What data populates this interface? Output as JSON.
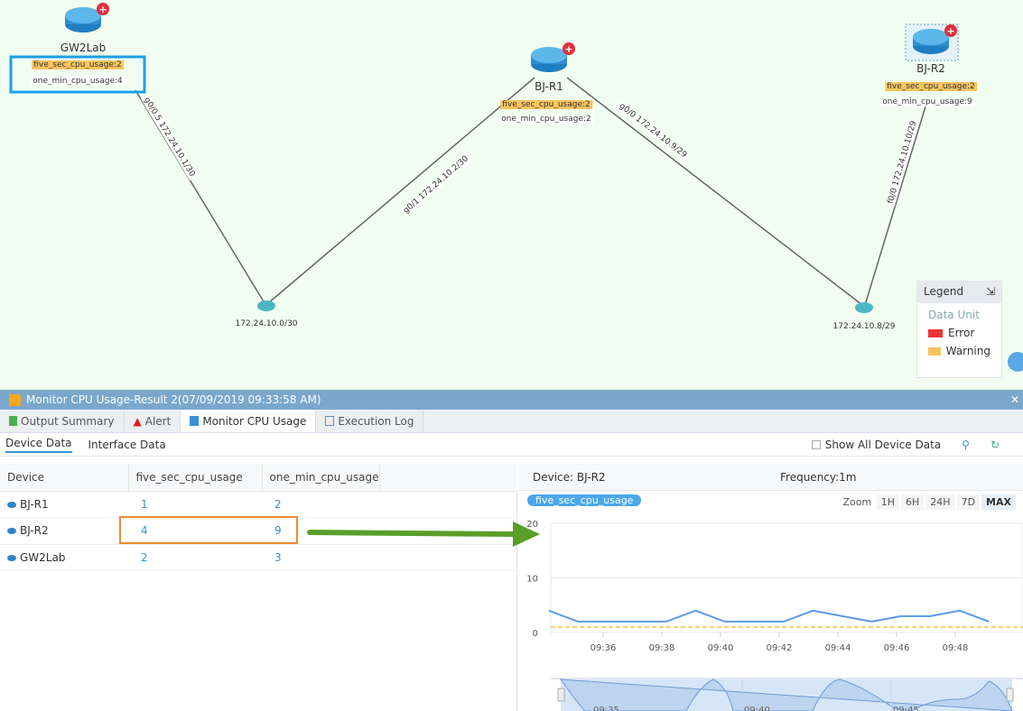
{
  "map": {
    "nodes": [
      {
        "name": "GW2Lab",
        "five": "five_sec_cpu_usage:2",
        "one": "one_min_cpu_usage:4"
      },
      {
        "name": "BJ-R1",
        "five": "five_sec_cpu_usage:2",
        "one": "one_min_cpu_usage:2"
      },
      {
        "name": "BJ-R2",
        "five": "five_sec_cpu_usage:2",
        "one": "one_min_cpu_usage:9"
      }
    ],
    "subnets": [
      "172.24.10.0/30",
      "172.24.10.8/29"
    ],
    "links": [
      "g0/0.5 172.24.10.1/30",
      "g0/1 172.24.10.2/30",
      "g0/0 172.24.10.9/29",
      "f0/0 172.24.10.10/29"
    ],
    "legend": {
      "title": "Legend",
      "section": "Data Unit",
      "items": [
        {
          "label": "Error",
          "color": "#ee3333"
        },
        {
          "label": "Warning",
          "color": "#f9c45f"
        }
      ]
    }
  },
  "panel": {
    "title": "Monitor CPU Usage-Result 2(07/09/2019 09:33:58 AM)",
    "tabs": [
      "Output Summary",
      "Alert",
      "Monitor CPU Usage",
      "Execution Log"
    ],
    "subtabs": [
      "Device Data",
      "Interface Data"
    ],
    "show_all": "Show All Device Data",
    "table": {
      "headers": [
        "Device",
        "five_sec_cpu_usage",
        "one_min_cpu_usage"
      ],
      "rows": [
        [
          "BJ-R1",
          "1",
          "2"
        ],
        [
          "BJ-R2",
          "4",
          "9"
        ],
        [
          "GW2Lab",
          "2",
          "3"
        ]
      ]
    },
    "detail": {
      "device": "Device: BJ-R2",
      "frequency": "Frequency:1m",
      "metric": "five_sec_cpu_usage",
      "zoom_label": "Zoom",
      "zoom_options": [
        "1H",
        "6H",
        "24H",
        "7D",
        "MAX"
      ],
      "zoom_selected": "MAX"
    }
  },
  "chart_data": {
    "type": "line",
    "series": [
      {
        "name": "five_sec_cpu_usage",
        "color": "#5b9be6",
        "x": [
          "09:34",
          "09:35",
          "09:36",
          "09:37",
          "09:38",
          "09:39",
          "09:40",
          "09:41",
          "09:42",
          "09:43",
          "09:44",
          "09:45",
          "09:46",
          "09:47",
          "09:48",
          "09:49"
        ],
        "values": [
          4,
          2,
          2,
          2,
          2,
          4,
          2,
          2,
          2,
          4,
          3,
          2,
          3,
          3,
          4,
          2
        ]
      }
    ],
    "threshold": {
      "value": 1,
      "color": "#f5c242",
      "style": "dashed"
    },
    "yticks": [
      "0",
      "10",
      "20"
    ],
    "ylim": [
      0,
      20
    ],
    "xticks": [
      "09:36",
      "09:38",
      "09:40",
      "09:42",
      "09:44",
      "09:46",
      "09:48"
    ],
    "navigator_ticks": [
      "09:35",
      "09:40",
      "09:45"
    ],
    "grid": true
  }
}
